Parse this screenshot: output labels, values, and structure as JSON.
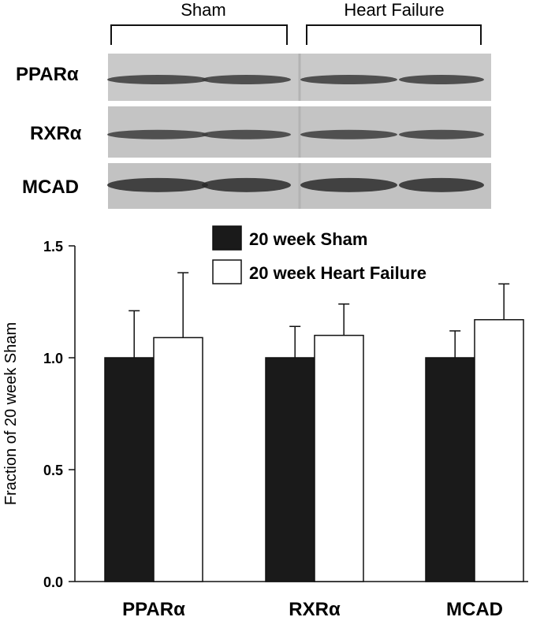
{
  "blot": {
    "group_labels": [
      "Sham",
      "Heart Failure"
    ],
    "rows": [
      {
        "label": "PPARα",
        "background": "#c9c9c9",
        "band": "#3a3a3a"
      },
      {
        "label": "RXRα",
        "background": "#c4c4c4",
        "band": "#3c3c3c"
      },
      {
        "label": "MCAD",
        "background": "#c2c2c2",
        "band": "#2a2a2a"
      }
    ]
  },
  "chart_data": {
    "type": "bar",
    "categories": [
      "PPARα",
      "RXRα",
      "MCAD"
    ],
    "series": [
      {
        "name": "20 week Sham",
        "values": [
          1.0,
          1.0,
          1.0
        ],
        "errors": [
          0.21,
          0.14,
          0.12
        ],
        "color": "#1a1a1a"
      },
      {
        "name": "20 week Heart Failure",
        "values": [
          1.09,
          1.1,
          1.17
        ],
        "errors": [
          0.29,
          0.14,
          0.16
        ],
        "color": "#ffffff"
      }
    ],
    "ylabel": "Fraction of 20 week Sham",
    "xlabel": "",
    "ylim": [
      0,
      1.5
    ],
    "yticks": [
      "0.0",
      "0.5",
      "1.0",
      "1.5"
    ],
    "legend_position": "top-center",
    "grid": false
  }
}
